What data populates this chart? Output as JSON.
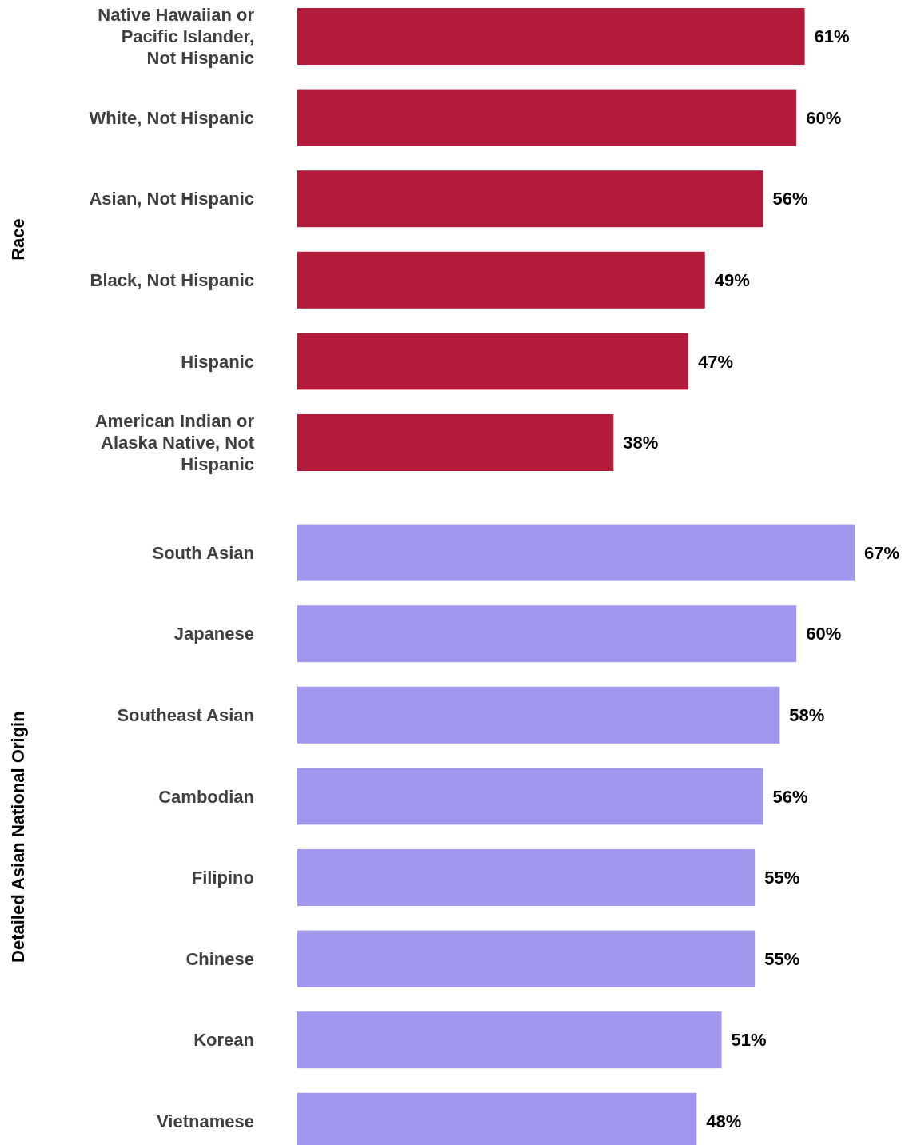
{
  "chart_data": [
    {
      "type": "bar",
      "orientation": "horizontal",
      "ylabel": "Race",
      "categories": [
        "Native Hawaiian or Pacific Islander, Not Hispanic",
        "White, Not Hispanic",
        "Asian, Not Hispanic",
        "Black, Not Hispanic",
        "Hispanic",
        "American Indian or Alaska Native, Not Hispanic"
      ],
      "values": [
        61,
        60,
        56,
        49,
        47,
        38
      ],
      "value_labels": [
        "61%",
        "60%",
        "56%",
        "49%",
        "47%",
        "38%"
      ],
      "color": "#b31b3a"
    },
    {
      "type": "bar",
      "orientation": "horizontal",
      "ylabel": "Detailed Asian National Origin",
      "categories": [
        "South Asian",
        "Japanese",
        "Southeast Asian",
        "Cambodian",
        "Filipino",
        "Chinese",
        "Korean",
        "Vietnamese"
      ],
      "values": [
        67,
        60,
        58,
        56,
        55,
        55,
        51,
        48
      ],
      "value_labels": [
        "67%",
        "60%",
        "58%",
        "56%",
        "55%",
        "55%",
        "51%",
        "48%"
      ],
      "color": "#a098ee"
    }
  ]
}
